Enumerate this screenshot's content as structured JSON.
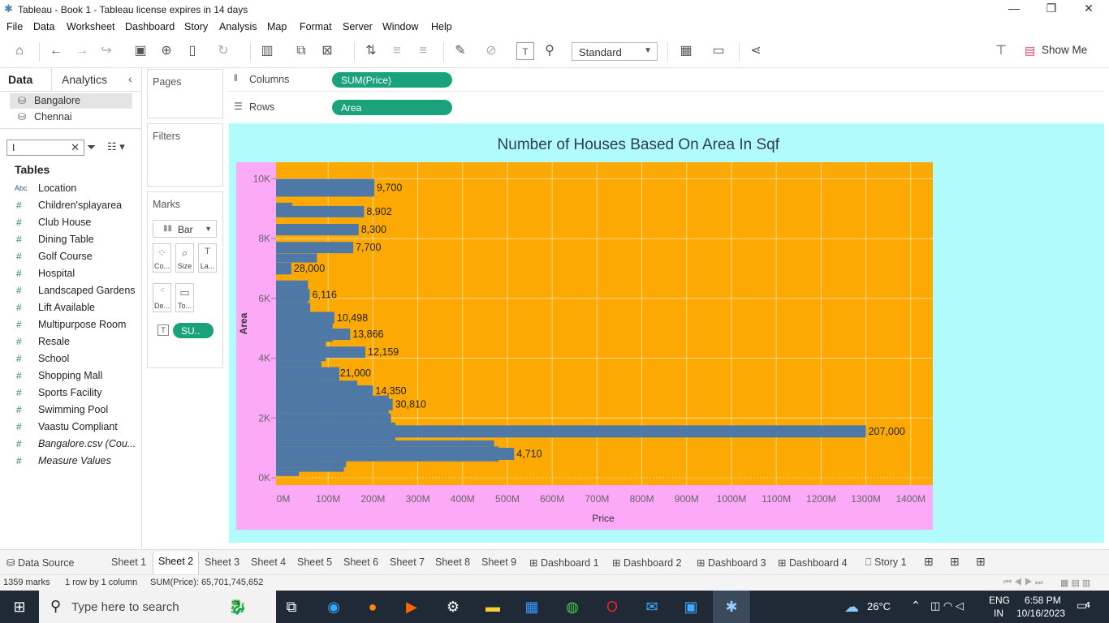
{
  "window": {
    "title": "Tableau - Book 1 - Tableau license expires in 14 days"
  },
  "menu": [
    "File",
    "Data",
    "Worksheet",
    "Dashboard",
    "Story",
    "Analysis",
    "Map",
    "Format",
    "Server",
    "Window",
    "Help"
  ],
  "toolbar": {
    "fit_mode": "Standard",
    "show_me": "Show Me"
  },
  "data_pane": {
    "tab_data": "Data",
    "tab_analytics": "Analytics",
    "datasources": [
      "Bangalore",
      "Chennai"
    ],
    "search_value": "I",
    "tables_heading": "Tables",
    "fields": [
      {
        "type": "Abc",
        "name": "Location"
      },
      {
        "type": "#",
        "name": "Children'splayarea"
      },
      {
        "type": "#",
        "name": "Club House"
      },
      {
        "type": "#",
        "name": "Dining Table"
      },
      {
        "type": "#",
        "name": "Golf Course"
      },
      {
        "type": "#",
        "name": "Hospital"
      },
      {
        "type": "#",
        "name": "Landscaped Gardens"
      },
      {
        "type": "#",
        "name": "Lift Available"
      },
      {
        "type": "#",
        "name": "Multipurpose Room"
      },
      {
        "type": "#",
        "name": "Resale"
      },
      {
        "type": "#",
        "name": "School"
      },
      {
        "type": "#",
        "name": "Shopping Mall"
      },
      {
        "type": "#",
        "name": "Sports Facility"
      },
      {
        "type": "#",
        "name": "Swimming Pool"
      },
      {
        "type": "#",
        "name": "Vaastu Compliant"
      },
      {
        "type": "#",
        "name": "Bangalore.csv (Cou..."
      },
      {
        "type": "#",
        "name": "Measure Values"
      }
    ]
  },
  "shelves": {
    "pages": "Pages",
    "filters": "Filters",
    "marks": "Marks",
    "columns_label": "Columns",
    "columns_pill": "SUM(Price)",
    "rows_label": "Rows",
    "rows_pill": "Area",
    "mark_type": "Bar",
    "mark_buttons": [
      "Co...",
      "Size",
      "La...",
      "De...",
      "To..."
    ],
    "mark_pill": "SU.."
  },
  "chart_data": {
    "type": "bar",
    "orientation": "horizontal",
    "title": "Number of Houses  Based On Area In Sqf",
    "xlabel": "Price",
    "ylabel": "Area",
    "x_ticks": [
      "0M",
      "100M",
      "200M",
      "300M",
      "400M",
      "500M",
      "600M",
      "700M",
      "800M",
      "900M",
      "1000M",
      "1100M",
      "1200M",
      "1300M",
      "1400M"
    ],
    "y_ticks": [
      "10K",
      "8K",
      "6K",
      "4K",
      "2K",
      "0K"
    ],
    "xlim": [
      0,
      1460
    ],
    "x_unit": "M",
    "ylim": [
      0,
      10500
    ],
    "labeled_bars": [
      {
        "area": 9700,
        "price": 203,
        "label": "9,700"
      },
      {
        "area": 8902,
        "price": 180,
        "label": "8,902"
      },
      {
        "area": 8300,
        "price": 168,
        "label": "8,300"
      },
      {
        "area": 7700,
        "price": 156,
        "label": "7,700"
      },
      {
        "area": 7000,
        "price": 18,
        "label": "28,000"
      },
      {
        "area": 6116,
        "price": 59,
        "label": "6,116"
      },
      {
        "area": 5350,
        "price": 114,
        "label": "10,498"
      },
      {
        "area": 4800,
        "price": 149,
        "label": "13,866"
      },
      {
        "area": 4200,
        "price": 183,
        "label": "12,159"
      },
      {
        "area": 3500,
        "price": 121,
        "label": "21,000"
      },
      {
        "area": 2900,
        "price": 200,
        "label": "14,350"
      },
      {
        "area": 2450,
        "price": 244,
        "label": "30,810"
      },
      {
        "area": 1550,
        "price": 1300,
        "label": "207,000"
      },
      {
        "area": 800,
        "price": 515,
        "label": "4,710"
      }
    ],
    "stack_profile": [
      {
        "from": 9000,
        "to": 9200,
        "price": 20
      },
      {
        "from": 7550,
        "to": 7850,
        "price": 150
      },
      {
        "from": 7200,
        "to": 7500,
        "price": 75
      },
      {
        "from": 6800,
        "to": 7100,
        "price": 15
      },
      {
        "from": 5850,
        "to": 6600,
        "price": 55
      },
      {
        "from": 5550,
        "to": 5850,
        "price": 60
      },
      {
        "from": 5100,
        "to": 5550,
        "price": 110
      },
      {
        "from": 4550,
        "to": 5100,
        "price": 110
      },
      {
        "from": 3900,
        "to": 4550,
        "price": 95
      },
      {
        "from": 3700,
        "to": 3900,
        "price": 85
      },
      {
        "from": 3250,
        "to": 3700,
        "price": 125
      },
      {
        "from": 3050,
        "to": 3250,
        "price": 165
      },
      {
        "from": 2750,
        "to": 3050,
        "price": 190
      },
      {
        "from": 2150,
        "to": 2750,
        "price": 235
      },
      {
        "from": 1850,
        "to": 2150,
        "price": 240
      },
      {
        "from": 1250,
        "to": 1850,
        "price": 250
      },
      {
        "from": 1050,
        "to": 1250,
        "price": 470
      },
      {
        "from": 550,
        "to": 1050,
        "price": 480
      },
      {
        "from": 350,
        "to": 550,
        "price": 140
      },
      {
        "from": 200,
        "to": 350,
        "price": 135
      },
      {
        "from": 60,
        "to": 200,
        "price": 35
      }
    ],
    "colors": {
      "bar": "#4e79a7",
      "plot_bg": "#fca903",
      "axis_bg": "#fca9f8",
      "view_bg": "#b1fbfc"
    }
  },
  "sheet_tabs": [
    "Data Source",
    "Sheet 1",
    "Sheet 2",
    "Sheet 3",
    "Sheet 4",
    "Sheet 5",
    "Sheet 6",
    "Sheet 7",
    "Sheet 8",
    "Sheet 9",
    "Dashboard 1",
    "Dashboard 2",
    "Dashboard 3",
    "Dashboard 4",
    "Story 1"
  ],
  "active_tab": "Sheet 2",
  "status": {
    "marks": "1359 marks",
    "rows_cols": "1 row by 1 column",
    "sum": "SUM(Price): 65,701,745,652"
  },
  "taskbar": {
    "search_placeholder": "Type here to search",
    "weather": "26°C",
    "lang1": "ENG",
    "lang2": "IN",
    "time": "6:58 PM",
    "date": "10/16/2023",
    "notifications": "4"
  }
}
